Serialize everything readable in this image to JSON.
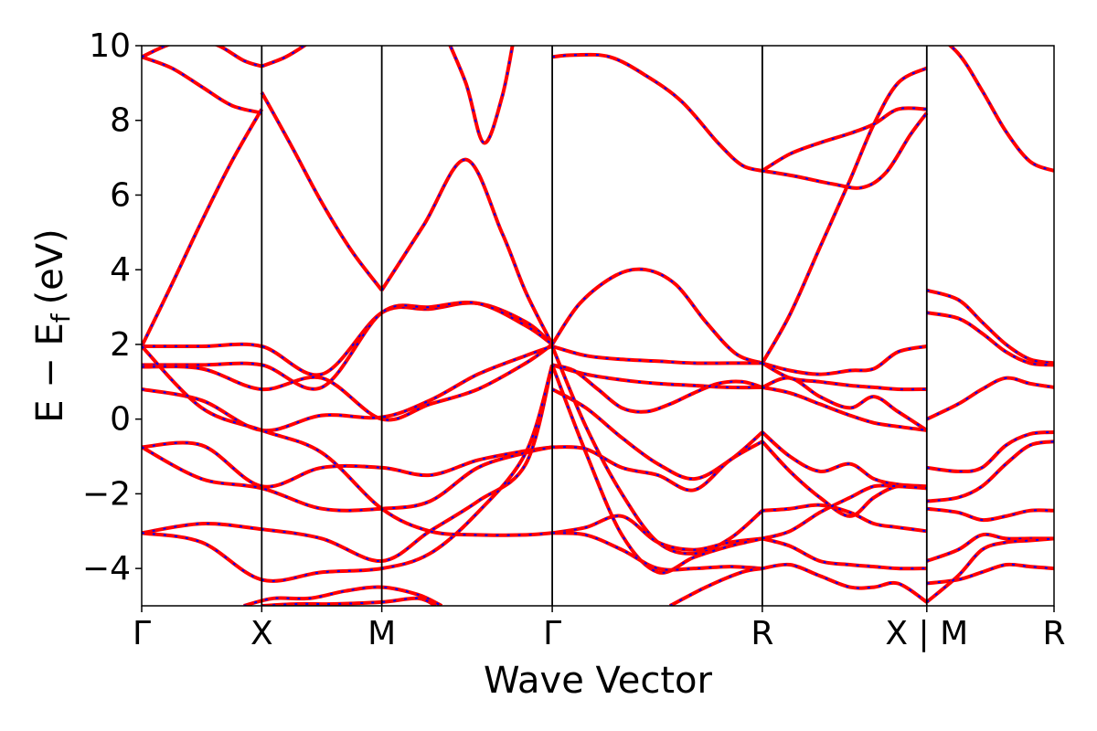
{
  "chart_data": {
    "type": "line",
    "title": "",
    "xlabel": "Wave Vector",
    "ylabel": "E − E_f (eV)",
    "ylabel_main": "E − E",
    "ylabel_sub": "f",
    "ylabel_unit": "(eV)",
    "ylim": [
      -5,
      10
    ],
    "yticks": [
      -4,
      -2,
      0,
      2,
      4,
      6,
      8,
      10
    ],
    "ytick_labels": [
      "−4",
      "−2",
      "0",
      "2",
      "4",
      "6",
      "8",
      "10"
    ],
    "xlim": [
      0,
      7.6
    ],
    "kpoints": [
      {
        "label": "Γ",
        "x": 0
      },
      {
        "label": "X",
        "x": 1.0
      },
      {
        "label": "M",
        "x": 2.0
      },
      {
        "label": "Γ",
        "x": 3.42
      },
      {
        "label": "R",
        "x": 5.17
      },
      {
        "label": "X | M",
        "x": 6.54
      },
      {
        "label": "R",
        "x": 7.6
      }
    ],
    "colors": {
      "band_solid": "#ff0000",
      "band_dashed": "#0000ff",
      "axis": "#000000"
    },
    "grid": false,
    "series": [
      {
        "x": [
          0,
          0.25,
          0.5,
          0.75,
          1.0
        ],
        "values": [
          1.95,
          3.6,
          5.3,
          6.9,
          8.3
        ]
      },
      {
        "x": [
          1.0,
          1.25,
          1.5,
          1.75,
          2.0
        ],
        "values": [
          8.75,
          7.3,
          5.8,
          4.5,
          3.45
        ]
      },
      {
        "x": [
          2.0,
          2.35,
          2.7,
          3.0,
          3.2,
          3.42
        ],
        "values": [
          3.45,
          5.2,
          6.95,
          5.0,
          3.4,
          2.0
        ]
      },
      {
        "x": [
          0,
          0.25,
          0.5,
          0.75,
          1.0
        ],
        "values": [
          9.7,
          9.4,
          8.9,
          8.4,
          8.2
        ]
      },
      {
        "x": [
          0,
          0.3,
          0.6,
          0.85,
          1.0
        ],
        "values": [
          9.7,
          10.1,
          10.05,
          9.6,
          9.45
        ]
      },
      {
        "x": [
          1.0,
          1.2,
          1.4,
          1.6
        ],
        "values": [
          9.45,
          9.7,
          10.1,
          10.6
        ]
      },
      {
        "x": [
          2.5,
          2.7,
          2.85,
          3.0,
          3.1
        ],
        "values": [
          10.5,
          9.0,
          7.4,
          8.6,
          10.2
        ]
      },
      {
        "x": [
          3.42,
          3.6,
          3.9,
          4.2,
          4.5,
          4.8,
          5.0,
          5.17
        ],
        "values": [
          9.7,
          9.75,
          9.7,
          9.2,
          8.5,
          7.4,
          6.8,
          6.65
        ]
      },
      {
        "x": [
          3.42,
          3.65,
          3.95,
          4.2,
          4.45,
          4.7,
          4.95,
          5.17
        ],
        "values": [
          2.0,
          3.1,
          3.85,
          4.0,
          3.6,
          2.6,
          1.75,
          1.5
        ]
      },
      {
        "x": [
          5.17,
          5.4,
          5.65,
          5.9,
          6.1,
          6.3,
          6.54
        ],
        "values": [
          1.5,
          2.8,
          4.6,
          6.4,
          7.9,
          9.0,
          9.4
        ]
      },
      {
        "x": [
          5.17,
          5.4,
          5.65,
          5.9,
          6.1,
          6.3,
          6.54
        ],
        "values": [
          6.65,
          7.1,
          7.4,
          7.65,
          7.9,
          8.3,
          8.3
        ]
      },
      {
        "x": [
          5.17,
          5.45,
          5.75,
          6.0,
          6.2,
          6.4,
          6.54
        ],
        "values": [
          6.65,
          6.5,
          6.3,
          6.2,
          6.6,
          7.6,
          8.2
        ]
      },
      {
        "x": [
          6.54,
          6.8,
          7.0,
          7.2,
          7.4,
          7.6
        ],
        "values": [
          10.5,
          9.8,
          8.8,
          7.7,
          6.9,
          6.65
        ]
      },
      {
        "x": [
          0,
          0.5,
          1.0,
          1.5,
          2.0,
          2.4,
          2.8,
          3.2,
          3.42
        ],
        "values": [
          1.95,
          1.95,
          1.95,
          1.2,
          2.85,
          2.95,
          3.1,
          2.6,
          2.0
        ]
      },
      {
        "x": [
          0,
          0.5,
          1.0,
          1.5,
          2.0,
          2.4,
          2.8,
          3.2,
          3.42
        ],
        "values": [
          1.45,
          1.45,
          1.45,
          0.85,
          2.85,
          3.0,
          3.1,
          2.5,
          2.0
        ]
      },
      {
        "x": [
          0,
          0.5,
          1.0,
          1.5,
          2.0,
          2.4,
          2.8,
          3.2,
          3.42
        ],
        "values": [
          1.4,
          1.35,
          0.8,
          1.1,
          0.0,
          0.4,
          0.8,
          1.5,
          2.0
        ]
      },
      {
        "x": [
          0,
          0.5,
          1.0,
          1.5,
          2.0,
          2.4,
          2.8,
          3.2,
          3.42
        ],
        "values": [
          0.8,
          0.5,
          -0.3,
          0.1,
          0.05,
          0.5,
          1.2,
          1.7,
          1.95
        ]
      },
      {
        "x": [
          0,
          0.5,
          1.0,
          1.5,
          2.0,
          2.4,
          2.8,
          3.2,
          3.42
        ],
        "values": [
          -0.75,
          -0.7,
          -1.8,
          -1.3,
          -1.3,
          -1.5,
          -1.1,
          -0.85,
          -0.75
        ]
      },
      {
        "x": [
          0,
          0.5,
          1.0,
          1.5,
          2.0,
          2.4,
          2.8,
          3.2,
          3.42
        ],
        "values": [
          -0.75,
          -1.6,
          -1.85,
          -2.4,
          -2.4,
          -2.2,
          -1.3,
          -0.9,
          -0.75
        ]
      },
      {
        "x": [
          0,
          0.5,
          1.0,
          1.5,
          2.0,
          2.4,
          2.8,
          3.2,
          3.42
        ],
        "values": [
          -3.05,
          -2.8,
          -2.95,
          -3.2,
          -3.8,
          -3.0,
          -2.2,
          -1.2,
          1.45
        ]
      },
      {
        "x": [
          0,
          0.5,
          1.0,
          1.5,
          2.0,
          2.4,
          2.8,
          3.2,
          3.42
        ],
        "values": [
          -3.05,
          -3.3,
          -4.3,
          -4.1,
          -4.0,
          -3.6,
          -2.5,
          -0.9,
          1.45
        ]
      },
      {
        "x": [
          0,
          0.5,
          1.0,
          1.5,
          2.0,
          2.4,
          2.8,
          3.2,
          3.42
        ],
        "values": [
          1.95,
          0.3,
          -0.3,
          -0.9,
          -2.4,
          -3.0,
          -3.1,
          -3.1,
          -3.05
        ]
      },
      {
        "x": [
          3.42,
          3.7,
          4.0,
          4.3,
          4.6,
          4.9,
          5.17
        ],
        "values": [
          1.95,
          1.7,
          1.6,
          1.55,
          1.5,
          1.5,
          1.5
        ]
      },
      {
        "x": [
          3.42,
          3.7,
          4.0,
          4.3,
          4.6,
          4.9,
          5.17
        ],
        "values": [
          1.45,
          1.2,
          1.05,
          0.95,
          0.9,
          0.85,
          0.85
        ]
      },
      {
        "x": [
          3.42,
          3.6,
          3.8,
          4.0,
          4.2,
          4.4,
          4.6,
          4.8,
          5.0,
          5.17
        ],
        "values": [
          1.45,
          1.3,
          0.8,
          0.3,
          0.2,
          0.4,
          0.7,
          0.95,
          1.0,
          0.85
        ]
      },
      {
        "x": [
          3.42,
          3.7,
          4.0,
          4.3,
          4.6,
          4.9,
          5.17
        ],
        "values": [
          0.8,
          0.3,
          -0.5,
          -1.2,
          -1.6,
          -1.1,
          -0.35
        ]
      },
      {
        "x": [
          3.42,
          3.7,
          4.0,
          4.3,
          4.6,
          4.9,
          5.17
        ],
        "values": [
          -0.75,
          -0.8,
          -1.3,
          -1.5,
          -1.9,
          -1.1,
          -0.6
        ]
      },
      {
        "x": [
          3.42,
          3.7,
          4.0,
          4.3,
          4.6,
          4.9,
          5.17
        ],
        "values": [
          1.95,
          -0.2,
          -2.0,
          -3.3,
          -3.6,
          -3.2,
          -2.45
        ]
      },
      {
        "x": [
          3.42,
          3.7,
          4.0,
          4.3,
          4.6,
          4.9,
          5.17
        ],
        "values": [
          -3.05,
          -2.9,
          -2.6,
          -3.3,
          -3.5,
          -3.3,
          -3.2
        ]
      },
      {
        "x": [
          3.42,
          3.7,
          4.0,
          4.3,
          4.6,
          4.9,
          5.17
        ],
        "values": [
          1.45,
          -0.9,
          -3.1,
          -4.1,
          -3.7,
          -3.4,
          -3.2
        ]
      },
      {
        "x": [
          3.42,
          3.7,
          4.0,
          4.3,
          4.6,
          4.9,
          5.17
        ],
        "values": [
          -3.05,
          -3.1,
          -3.5,
          -4.0,
          -4.0,
          -3.95,
          -4.0
        ]
      },
      {
        "x": [
          4.4,
          4.7,
          5.0,
          5.17
        ],
        "values": [
          -5.0,
          -4.5,
          -4.1,
          -4.0
        ]
      },
      {
        "x": [
          5.17,
          5.4,
          5.65,
          5.9,
          6.1,
          6.3,
          6.54
        ],
        "values": [
          1.5,
          1.3,
          1.2,
          1.3,
          1.35,
          1.8,
          1.95
        ]
      },
      {
        "x": [
          5.17,
          5.4,
          5.65,
          5.9,
          6.1,
          6.3,
          6.54
        ],
        "values": [
          1.5,
          1.1,
          1.0,
          0.9,
          0.85,
          0.8,
          0.8
        ]
      },
      {
        "x": [
          5.17,
          5.4,
          5.65,
          5.9,
          6.1,
          6.3,
          6.54
        ],
        "values": [
          0.85,
          1.1,
          0.6,
          0.3,
          0.6,
          0.2,
          -0.3
        ]
      },
      {
        "x": [
          5.17,
          5.4,
          5.65,
          5.9,
          6.1,
          6.3,
          6.54
        ],
        "values": [
          0.85,
          0.7,
          0.4,
          0.1,
          -0.1,
          -0.2,
          -0.3
        ]
      },
      {
        "x": [
          5.17,
          5.4,
          5.65,
          5.9,
          6.1,
          6.3,
          6.54
        ],
        "values": [
          -0.35,
          -1.0,
          -1.4,
          -1.2,
          -1.6,
          -1.75,
          -1.8
        ]
      },
      {
        "x": [
          5.17,
          5.4,
          5.65,
          5.9,
          6.1,
          6.3,
          6.54
        ],
        "values": [
          -0.6,
          -1.4,
          -2.1,
          -2.6,
          -2.1,
          -1.8,
          -1.85
        ]
      },
      {
        "x": [
          5.17,
          5.4,
          5.65,
          5.9,
          6.1,
          6.3,
          6.54
        ],
        "values": [
          -2.45,
          -2.4,
          -2.3,
          -2.5,
          -2.8,
          -2.9,
          -3.0
        ]
      },
      {
        "x": [
          5.17,
          5.4,
          5.65,
          5.9,
          6.1,
          6.3,
          6.54
        ],
        "values": [
          -3.2,
          -3.4,
          -3.8,
          -3.9,
          -3.95,
          -4.0,
          -4.0
        ]
      },
      {
        "x": [
          5.17,
          5.4,
          5.65,
          5.9,
          6.1,
          6.3,
          6.54
        ],
        "values": [
          -4.0,
          -3.9,
          -4.2,
          -4.5,
          -4.5,
          -4.4,
          -4.9
        ]
      },
      {
        "x": [
          5.17,
          5.4,
          5.65,
          5.9,
          6.1,
          6.3,
          6.54
        ],
        "values": [
          -3.2,
          -3.0,
          -2.5,
          -2.1,
          -1.8,
          -1.8,
          -1.85
        ]
      },
      {
        "x": [
          6.54,
          6.8,
          7.0,
          7.2,
          7.4,
          7.6
        ],
        "values": [
          3.45,
          3.2,
          2.6,
          2.0,
          1.6,
          1.5
        ]
      },
      {
        "x": [
          6.54,
          6.8,
          7.0,
          7.2,
          7.4,
          7.6
        ],
        "values": [
          2.85,
          2.7,
          2.3,
          1.8,
          1.5,
          1.45
        ]
      },
      {
        "x": [
          6.54,
          6.8,
          7.0,
          7.2,
          7.4,
          7.6
        ],
        "values": [
          0.0,
          0.4,
          0.8,
          1.1,
          0.95,
          0.85
        ]
      },
      {
        "x": [
          6.54,
          6.8,
          7.0,
          7.2,
          7.4,
          7.6
        ],
        "values": [
          -1.3,
          -1.4,
          -1.3,
          -0.7,
          -0.4,
          -0.35
        ]
      },
      {
        "x": [
          6.54,
          6.8,
          7.0,
          7.2,
          7.4,
          7.6
        ],
        "values": [
          -2.2,
          -2.1,
          -1.8,
          -1.2,
          -0.7,
          -0.6
        ]
      },
      {
        "x": [
          6.54,
          6.8,
          7.0,
          7.2,
          7.4,
          7.6
        ],
        "values": [
          -2.4,
          -2.5,
          -2.7,
          -2.6,
          -2.45,
          -2.45
        ]
      },
      {
        "x": [
          6.54,
          6.8,
          7.0,
          7.2,
          7.4,
          7.6
        ],
        "values": [
          -3.8,
          -3.5,
          -3.1,
          -3.2,
          -3.2,
          -3.2
        ]
      },
      {
        "x": [
          6.54,
          6.8,
          7.0,
          7.2,
          7.4,
          7.6
        ],
        "values": [
          -4.4,
          -4.3,
          -4.1,
          -3.9,
          -3.95,
          -4.0
        ]
      },
      {
        "x": [
          6.54,
          6.8,
          7.0,
          7.2,
          7.4,
          7.6
        ],
        "values": [
          -4.9,
          -4.2,
          -3.5,
          -3.3,
          -3.25,
          -3.2
        ]
      },
      {
        "x": [
          0.85,
          1.1,
          1.4,
          1.7,
          2.0,
          2.3,
          2.5
        ],
        "values": [
          -5.0,
          -4.8,
          -4.8,
          -4.6,
          -4.5,
          -4.7,
          -5.0
        ]
      },
      {
        "x": [
          1.0,
          1.3,
          1.6,
          2.0,
          2.3,
          2.45
        ],
        "values": [
          -5.0,
          -4.95,
          -4.95,
          -4.9,
          -4.8,
          -5.0
        ]
      }
    ]
  }
}
